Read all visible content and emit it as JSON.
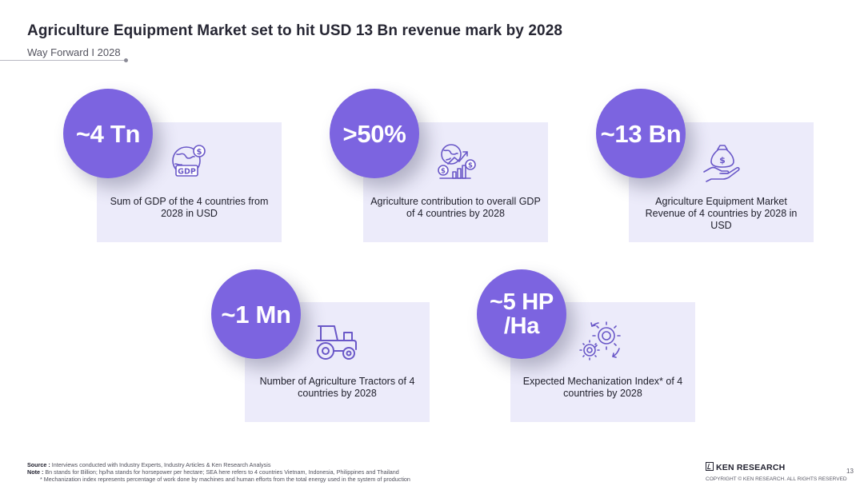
{
  "header": {
    "title": "Agriculture Equipment Market set to hit USD 13 Bn revenue mark by 2028",
    "subtitle": "Way Forward I 2028"
  },
  "cards": [
    {
      "value": "~4 Tn",
      "icon": "globe-gdp-icon",
      "icon_label": "GDP",
      "text": "Sum of GDP of the 4 countries from 2028 in USD"
    },
    {
      "value": ">50%",
      "icon": "globe-growth-chart-icon",
      "text": "Agriculture contribution to overall GDP of 4 countries by 2028"
    },
    {
      "value": "~13 Bn",
      "icon": "hand-money-bag-icon",
      "text": "Agriculture Equipment Market Revenue of 4 countries by 2028 in USD"
    },
    {
      "value": "~1 Mn",
      "icon": "tractor-icon",
      "text": "Number of Agriculture Tractors of 4 countries by 2028"
    },
    {
      "value_line1": "~5 HP",
      "value_line2": "/Ha",
      "icon": "gears-icon",
      "text": "Expected Mechanization Index* of 4 countries by 2028"
    }
  ],
  "footer": {
    "source_label": "Source :",
    "source_text": "Interviews conducted with Industry Experts, Industry Articles & Ken Research Analysis",
    "note_label": "Note :",
    "note_text": "Bn stands for Billion; hp/ha stands for horsepower per hectare; SEA here refers to 4 countries Vietnam, Indonesia, Philippines and Thailand",
    "note_text2": "* Mechanization index represents percentage of work done by machines and human efforts from the total energy used in the system of production",
    "brand": "KEN RESEARCH",
    "copyright": "COPYRIGHT © KEN RESEARCH. ALL RIGHTS RESERVED",
    "page_number": "13"
  },
  "colors": {
    "accent": "#7c64e0",
    "card_bg": "#ecebfa",
    "icon": "#6a58c8"
  }
}
